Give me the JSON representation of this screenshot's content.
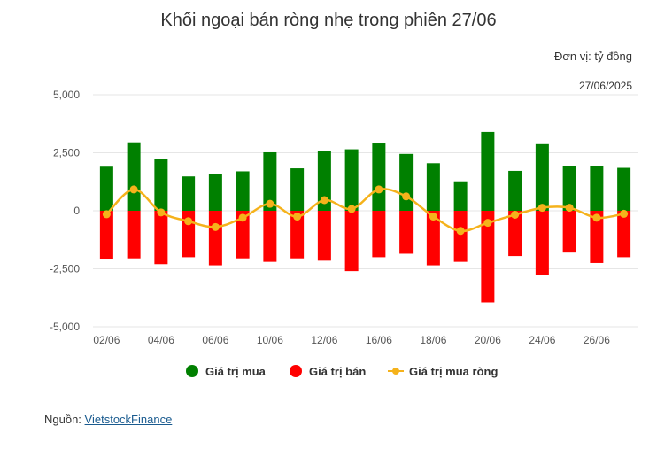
{
  "title": "Khối ngoại bán ròng nhẹ trong phiên 27/06",
  "unit_label": "Đơn vị: tỷ đồng",
  "date_label": "27/06/2025",
  "source": {
    "prefix": "Nguồn: ",
    "link_text": "VietstockFinance"
  },
  "colors": {
    "buy": "#008000",
    "sell": "#ff0000",
    "net": "#f5b21b"
  },
  "chart_data": {
    "type": "bar",
    "dates": [
      "02/06",
      "03/06",
      "04/06",
      "05/06",
      "06/06",
      "09/06",
      "10/06",
      "11/06",
      "12/06",
      "13/06",
      "16/06",
      "17/06",
      "18/06",
      "19/06",
      "20/06",
      "23/06",
      "24/06",
      "25/06",
      "26/06",
      "27/06"
    ],
    "x_tick_labels": [
      "02/06",
      "04/06",
      "06/06",
      "10/06",
      "12/06",
      "16/06",
      "18/06",
      "20/06",
      "24/06",
      "26/06"
    ],
    "y_ticks": [
      5000,
      2500,
      0,
      -2500,
      -5000
    ],
    "y_tick_labels": [
      "5,000",
      "2,500",
      "0",
      "-2,500",
      "-5,000"
    ],
    "ylim": [
      -5000,
      5000
    ],
    "series": [
      {
        "name": "Giá trị mua",
        "type": "bar",
        "values": [
          1900,
          2950,
          2220,
          1480,
          1600,
          1700,
          2520,
          1830,
          2560,
          2650,
          2900,
          2450,
          2050,
          1270,
          3400,
          1720,
          2870,
          1920,
          1920,
          1850
        ]
      },
      {
        "name": "Giá trị bán",
        "type": "bar",
        "values": [
          -2100,
          -2050,
          -2300,
          -2000,
          -2350,
          -2050,
          -2200,
          -2050,
          -2150,
          -2600,
          -2000,
          -1850,
          -2350,
          -2200,
          -3950,
          -1950,
          -2750,
          -1800,
          -2250,
          -2000
        ]
      },
      {
        "name": "Giá trị mua ròng",
        "type": "line",
        "values": [
          -150,
          920,
          -70,
          -450,
          -700,
          -300,
          300,
          -250,
          460,
          80,
          920,
          620,
          -250,
          -870,
          -520,
          -170,
          130,
          130,
          -300,
          -130
        ]
      }
    ],
    "legend_position": "bottom"
  }
}
